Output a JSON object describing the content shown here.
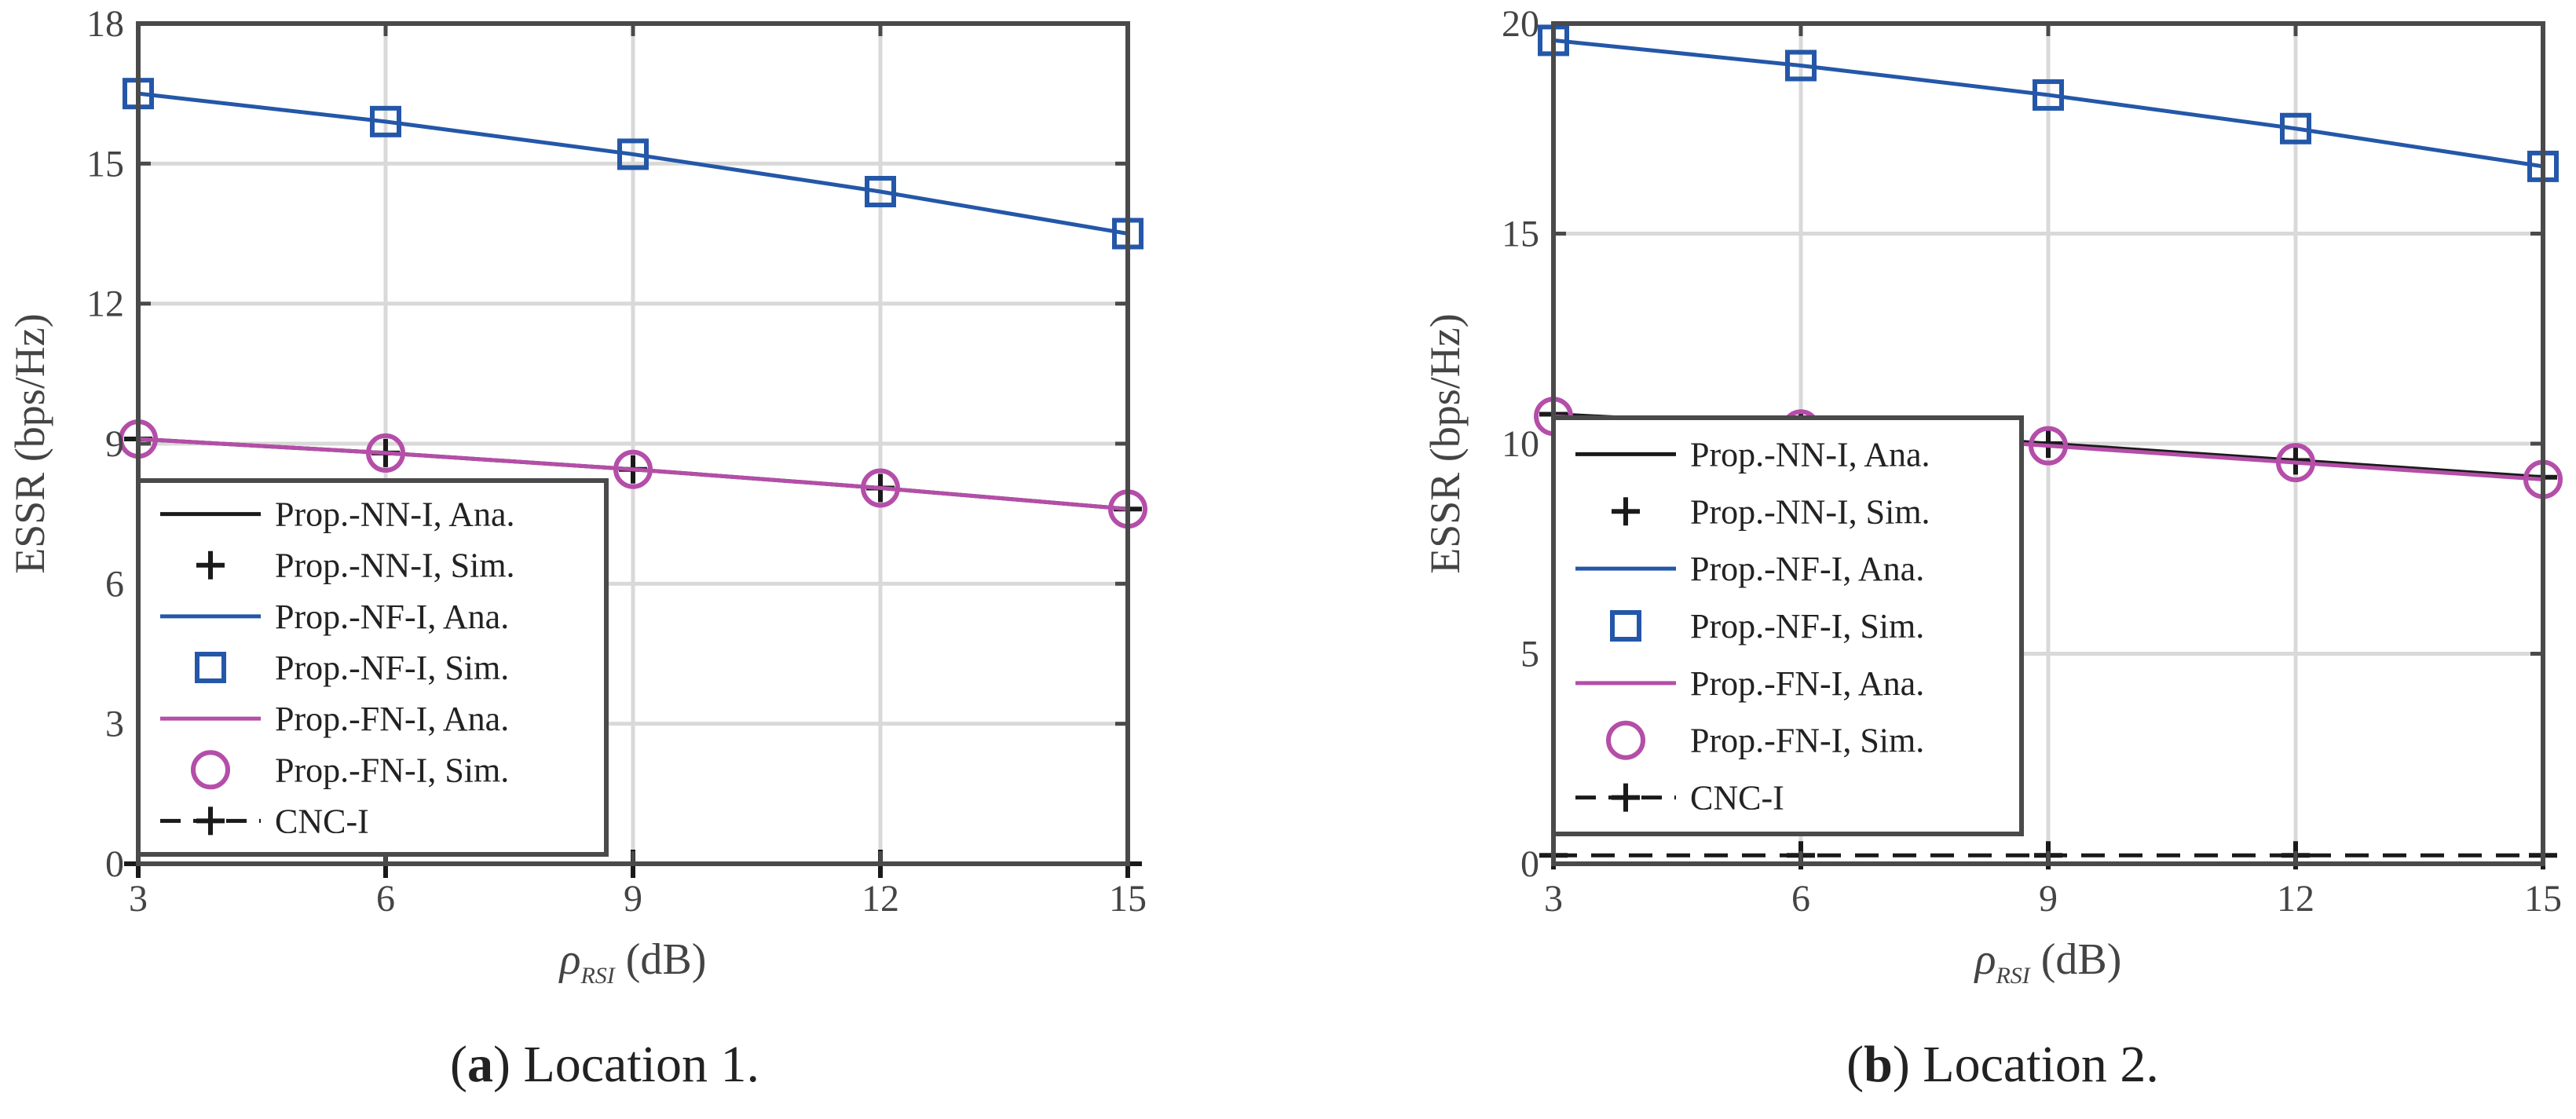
{
  "colors": {
    "nn": "#1a1a1a",
    "nf": "#2457a8",
    "fn": "#b44ea8",
    "cnc": "#1a1a1a",
    "grid": "#d9d9d9",
    "axis": "#4a4a4a"
  },
  "chart_data": [
    {
      "id": "a",
      "type": "line",
      "caption_letter": "a",
      "caption_text": " Location 1.",
      "xlabel_main": "ρ",
      "xlabel_sub": "RSI",
      "xlabel_unit": "(dB)",
      "ylabel": "ESSR (bps/Hz)",
      "x": [
        3,
        6,
        9,
        12,
        15
      ],
      "xticks": [
        "3",
        "6",
        "9",
        "12",
        "15"
      ],
      "yticks": [
        0,
        3,
        6,
        9,
        12,
        15,
        18
      ],
      "ylim": [
        0,
        18
      ],
      "grid": true,
      "legend_position": "bottom-left",
      "series": [
        {
          "key": "nn_ana",
          "name": "Prop.-NN-I, Ana.",
          "color_key": "nn",
          "style": "solid",
          "marker": "none",
          "values": [
            9.1,
            8.8,
            8.45,
            8.05,
            7.6
          ]
        },
        {
          "key": "nn_sim",
          "name": "Prop.-NN-I, Sim.",
          "color_key": "nn",
          "style": "none",
          "marker": "plus",
          "values": [
            9.1,
            8.8,
            8.45,
            8.05,
            7.6
          ]
        },
        {
          "key": "nf_ana",
          "name": "Prop.-NF-I, Ana.",
          "color_key": "nf",
          "style": "solid",
          "marker": "none",
          "values": [
            16.5,
            15.9,
            15.2,
            14.4,
            13.5
          ]
        },
        {
          "key": "nf_sim",
          "name": "Prop.-NF-I, Sim.",
          "color_key": "nf",
          "style": "none",
          "marker": "square",
          "values": [
            16.5,
            15.9,
            15.2,
            14.4,
            13.5
          ]
        },
        {
          "key": "fn_ana",
          "name": "Prop.-FN-I, Ana.",
          "color_key": "fn",
          "style": "solid",
          "marker": "none",
          "values": [
            9.1,
            8.8,
            8.45,
            8.05,
            7.6
          ]
        },
        {
          "key": "fn_sim",
          "name": "Prop.-FN-I, Sim.",
          "color_key": "fn",
          "style": "none",
          "marker": "circle",
          "values": [
            9.1,
            8.8,
            8.45,
            8.05,
            7.6
          ]
        },
        {
          "key": "cnc",
          "name": "CNC-I",
          "color_key": "cnc",
          "style": "dashed",
          "marker": "plus",
          "values": [
            0,
            0,
            0,
            0,
            0
          ]
        }
      ]
    },
    {
      "id": "b",
      "type": "line",
      "caption_letter": "b",
      "caption_text": " Location 2.",
      "xlabel_main": "ρ",
      "xlabel_sub": "RSI",
      "xlabel_unit": "(dB)",
      "ylabel": "ESSR (bps/Hz)",
      "x": [
        3,
        6,
        9,
        12,
        15
      ],
      "xticks": [
        "3",
        "6",
        "9",
        "12",
        "15"
      ],
      "yticks": [
        0,
        5,
        10,
        15,
        20
      ],
      "ylim": [
        0,
        20
      ],
      "grid": true,
      "legend_position": "bottom-left",
      "series": [
        {
          "key": "nn_ana",
          "name": "Prop.-NN-I, Ana.",
          "color_key": "nn",
          "style": "solid",
          "marker": "none",
          "values": [
            10.7,
            10.4,
            10.0,
            9.6,
            9.2
          ]
        },
        {
          "key": "nn_sim",
          "name": "Prop.-NN-I, Sim.",
          "color_key": "nn",
          "style": "none",
          "marker": "plus",
          "values": [
            10.7,
            10.4,
            10.0,
            9.6,
            9.2
          ]
        },
        {
          "key": "nf_ana",
          "name": "Prop.-NF-I, Ana.",
          "color_key": "nf",
          "style": "solid",
          "marker": "none",
          "values": [
            19.6,
            19.0,
            18.3,
            17.5,
            16.6
          ]
        },
        {
          "key": "nf_sim",
          "name": "Prop.-NF-I, Sim.",
          "color_key": "nf",
          "style": "none",
          "marker": "square",
          "values": [
            19.6,
            19.0,
            18.3,
            17.5,
            16.6
          ]
        },
        {
          "key": "fn_ana",
          "name": "Prop.-FN-I, Ana.",
          "color_key": "fn",
          "style": "solid",
          "marker": "none",
          "values": [
            10.65,
            10.35,
            9.95,
            9.55,
            9.15
          ]
        },
        {
          "key": "fn_sim",
          "name": "Prop.-FN-I, Sim.",
          "color_key": "fn",
          "style": "none",
          "marker": "circle",
          "values": [
            10.65,
            10.35,
            9.95,
            9.55,
            9.15
          ]
        },
        {
          "key": "cnc",
          "name": "CNC-I",
          "color_key": "cnc",
          "style": "dashed",
          "marker": "plus",
          "values": [
            0.2,
            0.2,
            0.2,
            0.2,
            0.2
          ]
        }
      ]
    }
  ]
}
